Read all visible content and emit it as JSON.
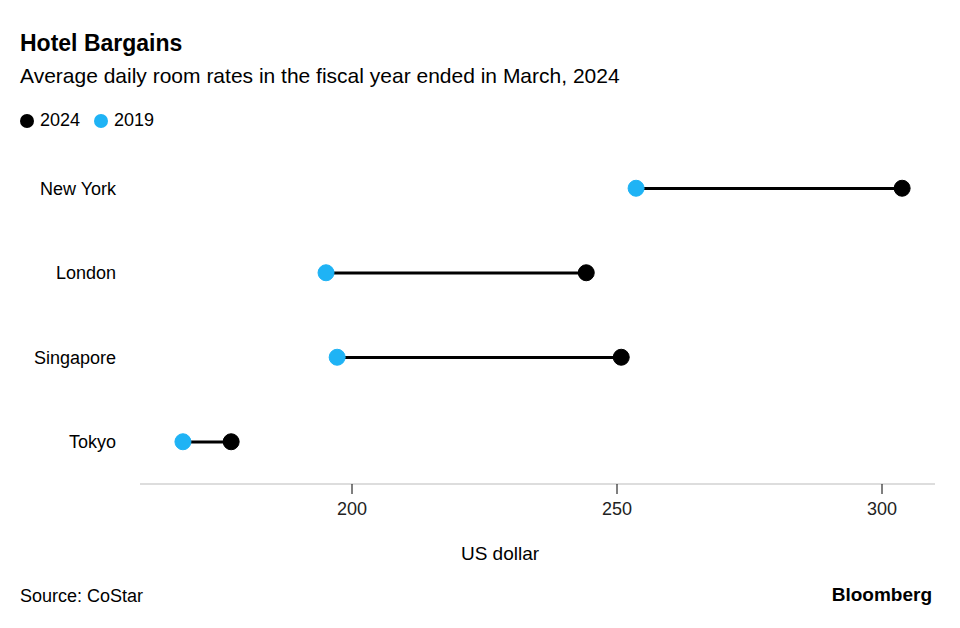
{
  "chart_data": {
    "type": "dumbbell",
    "title": "Hotel Bargains",
    "subtitle": "Average daily room rates in the fiscal year ended in March, 2024",
    "orientation": "horizontal",
    "legend": "top-left",
    "categories": [
      "New York",
      "London",
      "Singapore",
      "Tokyo"
    ],
    "series": [
      {
        "name": "2024",
        "color": "#000000",
        "values": [
          303.8,
          244.2,
          250.8,
          177.2
        ]
      },
      {
        "name": "2019",
        "color": "#1fb3f5",
        "values": [
          253.6,
          195.1,
          197.2,
          168.1
        ]
      }
    ],
    "xlim": [
      160,
      310
    ],
    "xticks": [
      200,
      250,
      300
    ],
    "xlabel": "US dollar",
    "source": "Source: CoStar",
    "credit": "Bloomberg"
  }
}
